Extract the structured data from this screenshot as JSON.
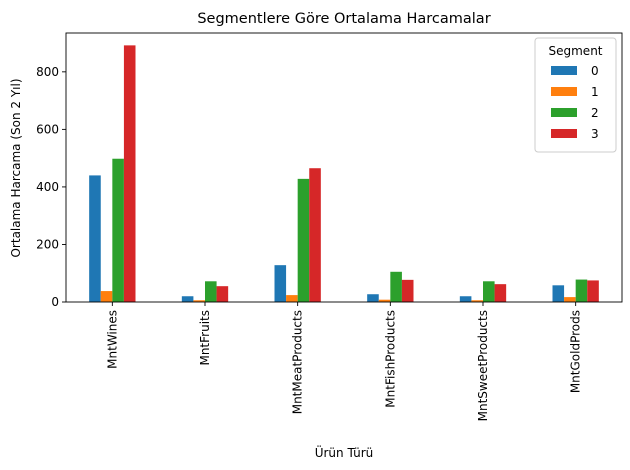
{
  "chart_data": {
    "type": "bar",
    "title": "Segmentlere Göre Ortalama Harcamalar",
    "xlabel": "Ürün Türü",
    "ylabel": "Ortalama Harcama (Son 2 Yıl)",
    "categories": [
      "MntWines",
      "MntFruits",
      "MntMeatProducts",
      "MntFishProducts",
      "MntSweetProducts",
      "MntGoldProds"
    ],
    "ylim": [
      0,
      935
    ],
    "yticks": [
      0,
      200,
      400,
      600,
      800
    ],
    "grid": false,
    "legend": {
      "title": "Segment",
      "placement": "top-right"
    },
    "series": [
      {
        "name": "0",
        "color": "#1f77b4",
        "values": [
          440,
          20,
          128,
          27,
          20,
          58
        ]
      },
      {
        "name": "1",
        "color": "#ff7f0e",
        "values": [
          38,
          6,
          24,
          8,
          6,
          17
        ]
      },
      {
        "name": "2",
        "color": "#2ca02c",
        "values": [
          498,
          72,
          428,
          105,
          72,
          78
        ]
      },
      {
        "name": "3",
        "color": "#d62728",
        "values": [
          892,
          55,
          465,
          77,
          62,
          75
        ]
      }
    ]
  }
}
